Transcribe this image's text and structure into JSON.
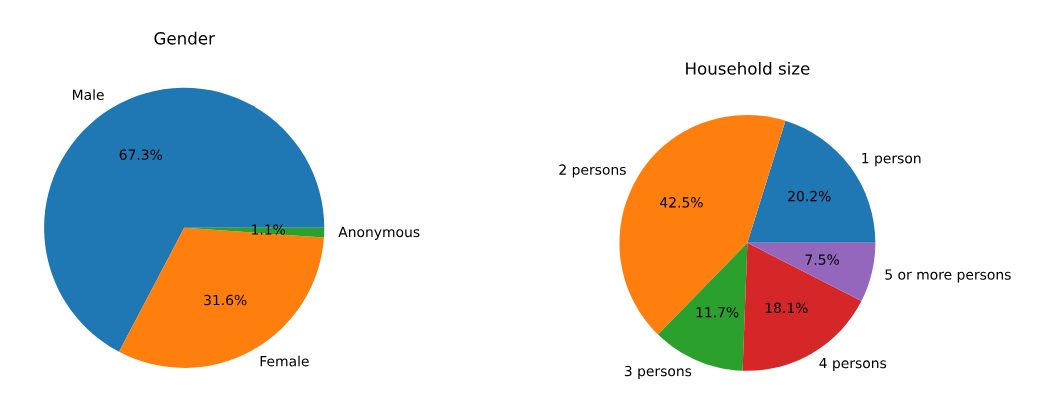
{
  "chart_data": [
    {
      "type": "pie",
      "title": "Gender",
      "categories": [
        "Male",
        "Female",
        "Anonymous"
      ],
      "values": [
        67.3,
        31.6,
        1.1
      ],
      "colors": [
        "#1f77b4",
        "#ff7f0e",
        "#2ca02c"
      ],
      "value_labels": [
        "67.3%",
        "31.6%",
        "1.1%"
      ]
    },
    {
      "type": "pie",
      "title": "Household size",
      "categories": [
        "1 person",
        "2 persons",
        "3 persons",
        "4 persons",
        "5 or more persons"
      ],
      "values": [
        20.2,
        42.5,
        11.7,
        18.1,
        7.5
      ],
      "colors": [
        "#1f77b4",
        "#ff7f0e",
        "#2ca02c",
        "#d62728",
        "#9467bd"
      ],
      "value_labels": [
        "20.2%",
        "42.5%",
        "11.7%",
        "18.1%",
        "7.5%"
      ]
    }
  ]
}
